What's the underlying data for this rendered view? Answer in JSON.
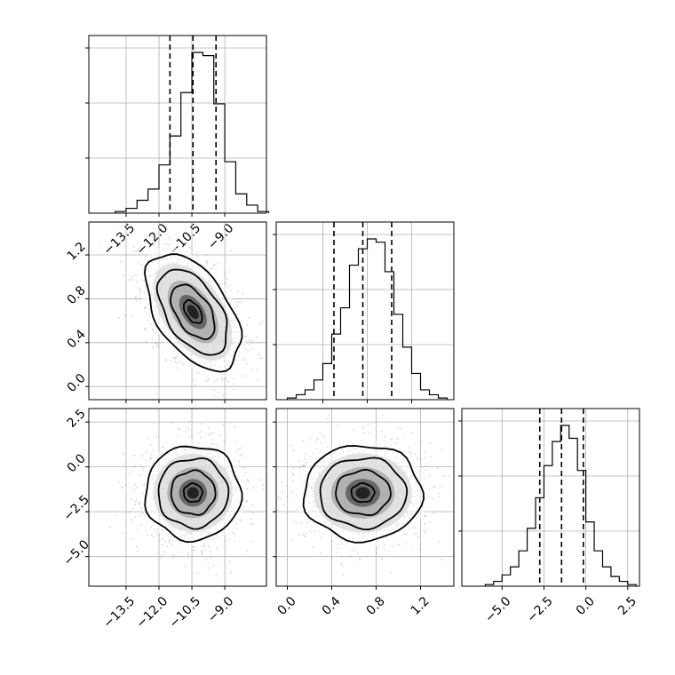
{
  "figure": {
    "style": "corner-plot",
    "grid": true,
    "colors": {
      "contour": "#000000",
      "points": "#9a9a9a",
      "grid": "#b0b0b0"
    }
  },
  "chart_data": [
    {
      "type": "histogram",
      "panel": "p00",
      "parameter": 0,
      "xlim": [
        -15.2,
        -7.1
      ],
      "bins": [
        -14.0,
        -13.5,
        -13.0,
        -12.5,
        -12.0,
        -11.5,
        -11.0,
        -10.5,
        -10.0,
        -9.5,
        -9.0,
        -8.5,
        -8.0,
        -7.5
      ],
      "counts": [
        1,
        3,
        8,
        15,
        30,
        48,
        75,
        100,
        98,
        68,
        32,
        12,
        5,
        1
      ],
      "quantiles": [
        -11.5,
        -10.45,
        -9.4
      ],
      "xticks": [
        "−13.5",
        "−12.0",
        "−10.5",
        "−9.0"
      ]
    },
    {
      "type": "scatter",
      "panel": "p10",
      "x_parameter": 0,
      "y_parameter": 1,
      "xlim": [
        -15.2,
        -7.1
      ],
      "ylim": [
        -0.12,
        1.5
      ],
      "mean": [
        -10.45,
        0.68
      ],
      "std": [
        1.05,
        0.26
      ],
      "correlation": -0.5,
      "yticks": [
        "0.0",
        "0.4",
        "0.8",
        "1.2"
      ]
    },
    {
      "type": "histogram",
      "panel": "p11",
      "parameter": 1,
      "xlim": [
        -0.1,
        1.5
      ],
      "bins": [
        0.0,
        0.08,
        0.16,
        0.24,
        0.32,
        0.4,
        0.48,
        0.56,
        0.64,
        0.72,
        0.8,
        0.88,
        0.96,
        1.04,
        1.12,
        1.2,
        1.28,
        1.36
      ],
      "counts": [
        1,
        3,
        6,
        12,
        22,
        40,
        56,
        82,
        92,
        98,
        96,
        78,
        52,
        32,
        16,
        6,
        3,
        1
      ],
      "quantiles": [
        0.42,
        0.68,
        0.94
      ]
    },
    {
      "type": "scatter",
      "panel": "p20",
      "x_parameter": 0,
      "y_parameter": 2,
      "xlim": [
        -15.2,
        -7.1
      ],
      "ylim": [
        -6.65,
        3.25
      ],
      "mean": [
        -10.45,
        -1.45
      ],
      "std": [
        1.05,
        1.3
      ],
      "correlation": 0.0,
      "yticks": [
        "−5.0",
        "−2.5",
        "0.0",
        "2.5"
      ],
      "xticks": [
        "−13.5",
        "−12.0",
        "−10.5",
        "−9.0"
      ]
    },
    {
      "type": "scatter",
      "panel": "p21",
      "x_parameter": 1,
      "y_parameter": 2,
      "xlim": [
        -0.1,
        1.5
      ],
      "ylim": [
        -6.65,
        3.25
      ],
      "mean": [
        0.68,
        -1.45
      ],
      "std": [
        0.26,
        1.3
      ],
      "correlation": 0.0,
      "xticks": [
        "0.0",
        "0.4",
        "0.8",
        "1.2"
      ]
    },
    {
      "type": "histogram",
      "panel": "p22",
      "parameter": 2,
      "xlim": [
        -7.4,
        3.2
      ],
      "bins": [
        -6.0,
        -5.5,
        -5.0,
        -4.5,
        -4.0,
        -3.5,
        -3.0,
        -2.5,
        -2.0,
        -1.5,
        -1.0,
        -0.5,
        0.0,
        0.5,
        1.0,
        1.5,
        2.0,
        2.5
      ],
      "counts": [
        1,
        3,
        7,
        12,
        22,
        36,
        55,
        75,
        90,
        100,
        92,
        72,
        40,
        22,
        12,
        6,
        3,
        1
      ],
      "quantiles": [
        -2.75,
        -1.45,
        -0.15
      ],
      "xticks": [
        "−5.0",
        "−2.5",
        "0.0",
        "2.5"
      ]
    }
  ]
}
